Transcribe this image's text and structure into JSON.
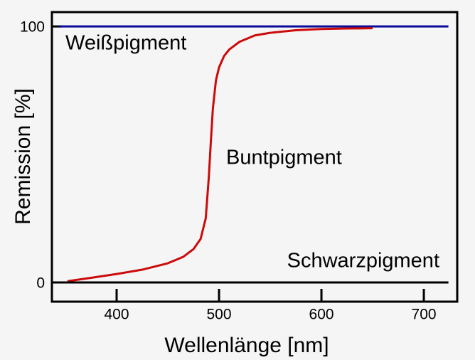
{
  "chart_data": {
    "type": "line",
    "x_label": "Wellenlänge [nm]",
    "y_label": "Remission [%]",
    "xlim": [
      336.8,
      732.6
    ],
    "ylim": [
      -7.5,
      105.6
    ],
    "xticks": [
      400,
      500,
      600,
      700
    ],
    "yticks": [
      0,
      100
    ],
    "grid": false,
    "series": [
      {
        "name": "Weißpigment",
        "color": "#0a0a9a",
        "x": [
          344,
          724
        ],
        "values": [
          100,
          100
        ]
      },
      {
        "name": "Buntpigment",
        "color": "#cc0a0a",
        "x": [
          352,
          375,
          400,
          425,
          450,
          465,
          475,
          482,
          487,
          490,
          492,
          494,
          497,
          500,
          505,
          510,
          520,
          535,
          550,
          575,
          600,
          625,
          650
        ],
        "values": [
          0.5,
          1.8,
          3.3,
          5,
          7.5,
          10,
          13,
          17,
          25,
          41,
          55,
          68,
          79,
          84,
          88.5,
          91,
          94,
          96.5,
          97.5,
          98.5,
          99,
          99.2,
          99.3
        ]
      },
      {
        "name": "Schwarzpigment",
        "color": "#000000",
        "x": [
          344,
          724
        ],
        "values": [
          0,
          0
        ]
      }
    ]
  }
}
